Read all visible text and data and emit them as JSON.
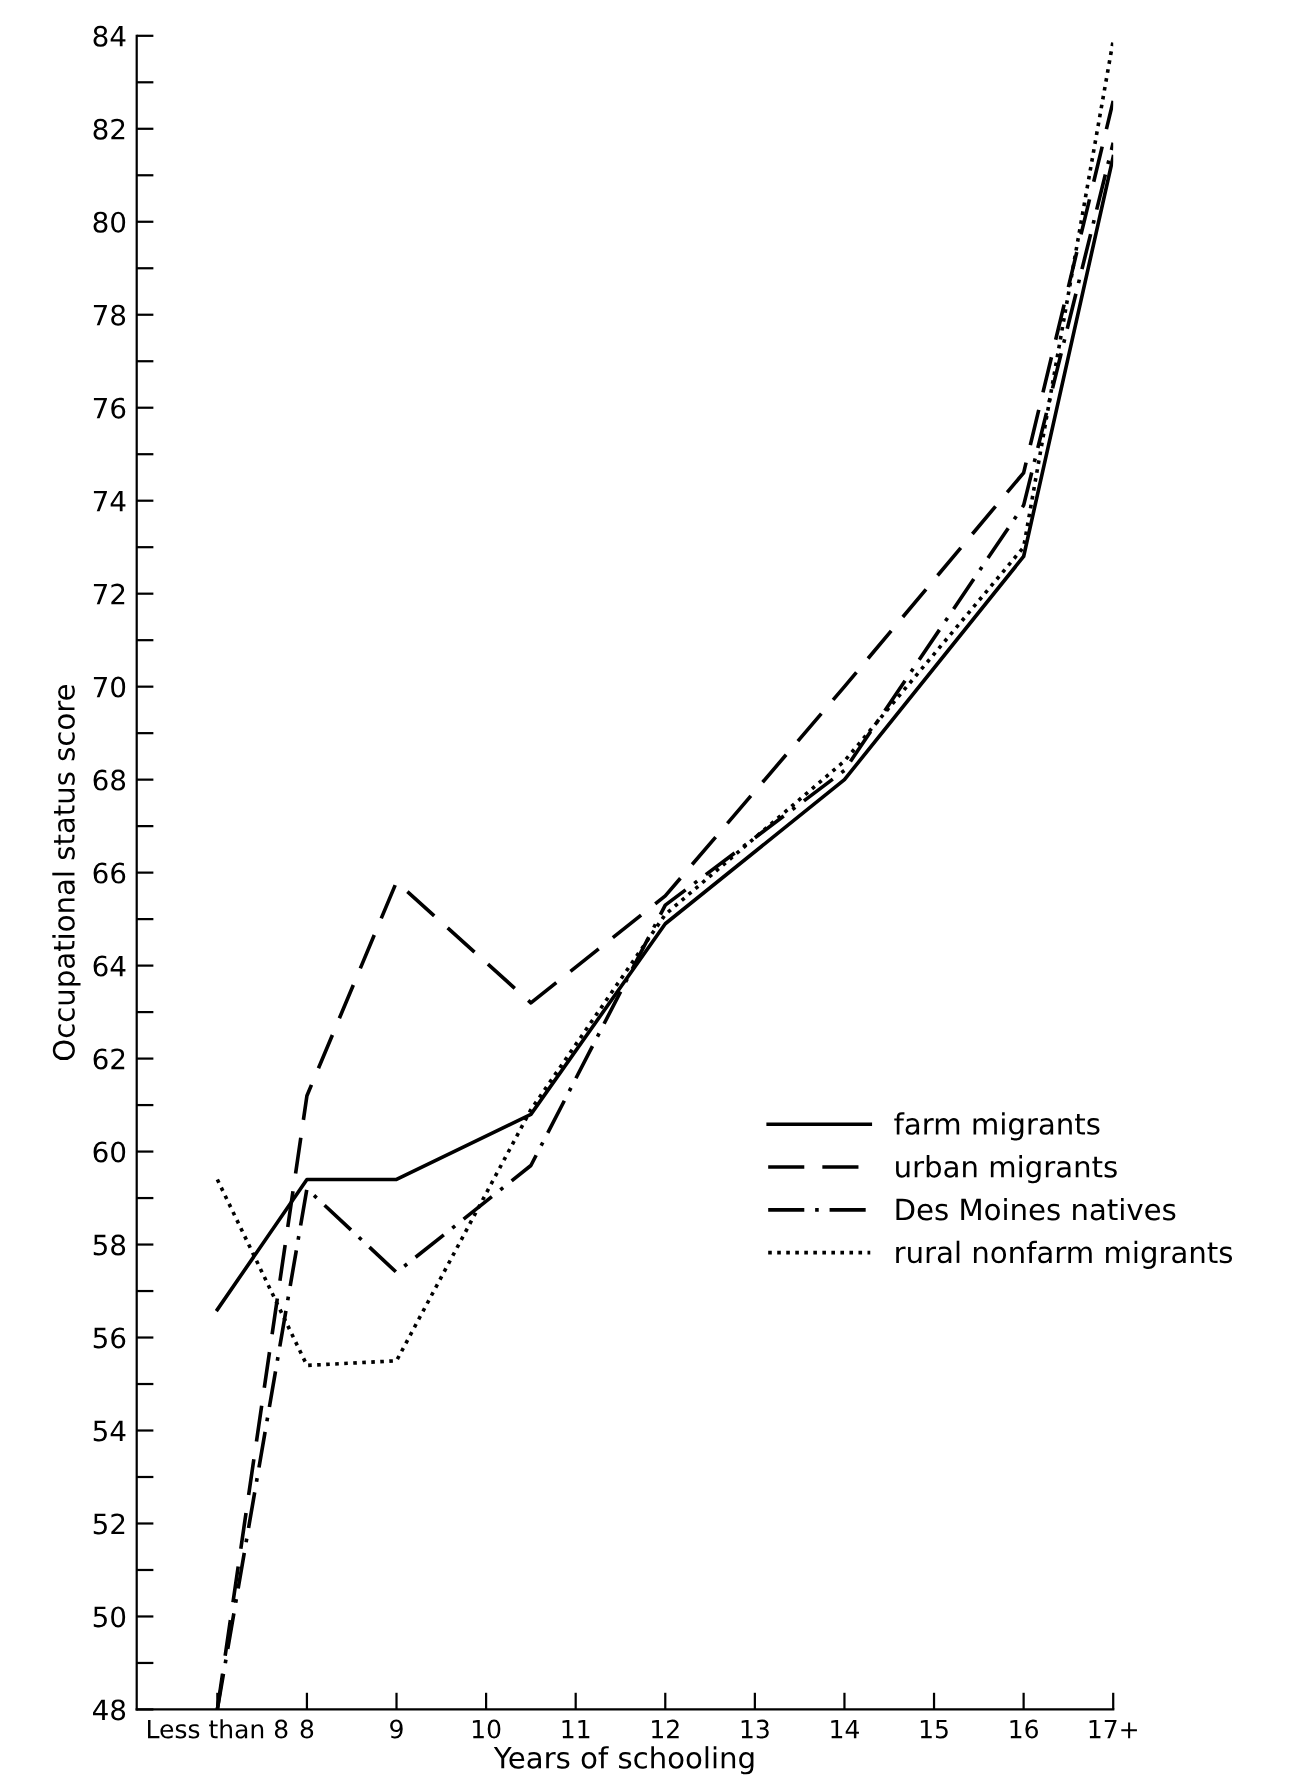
{
  "chart_data": {
    "type": "line",
    "xlabel": "Years of schooling",
    "ylabel": "Occupational status score",
    "xlim": [
      6.1,
      17
    ],
    "ylim": [
      48,
      84
    ],
    "xticks": [
      {
        "value": 7,
        "label": "Less than 8"
      },
      8,
      9,
      10,
      11,
      12,
      13,
      14,
      15,
      16,
      {
        "value": 17,
        "label": "17+"
      }
    ],
    "yticks": [
      48,
      {
        "value": 49,
        "label": null
      },
      50,
      {
        "value": 51,
        "label": null
      },
      52,
      {
        "value": 53,
        "label": null
      },
      54,
      {
        "value": 55,
        "label": null
      },
      56,
      {
        "value": 57,
        "label": null
      },
      58,
      {
        "value": 59,
        "label": null
      },
      60,
      {
        "value": 61,
        "label": null
      },
      62,
      {
        "value": 63,
        "label": null
      },
      64,
      {
        "value": 65,
        "label": null
      },
      66,
      {
        "value": 67,
        "label": null
      },
      68,
      {
        "value": 69,
        "label": null
      },
      70,
      {
        "value": 71,
        "label": null
      },
      72,
      {
        "value": 73,
        "label": null
      },
      74,
      {
        "value": 75,
        "label": null
      },
      76,
      {
        "value": 77,
        "label": null
      },
      78,
      {
        "value": 79,
        "label": null
      },
      80,
      {
        "value": 81,
        "label": null
      },
      82,
      {
        "value": 83,
        "label": null
      },
      84
    ],
    "grid": false,
    "legend": "center right",
    "marker": "none",
    "series": [
      {
        "name": "farm migrants",
        "color": "#000000",
        "line_style": "solid",
        "x": [
          7,
          8,
          9,
          10.5,
          12,
          14,
          16,
          17
        ],
        "values": [
          56.6,
          59.4,
          59.4,
          60.8,
          64.9,
          68.0,
          72.8,
          81.4
        ]
      },
      {
        "name": "urban migrants",
        "color": "#000000",
        "line_style": "dashed",
        "x": [
          7,
          8,
          9,
          10.5,
          12,
          14,
          16,
          17
        ],
        "values": [
          48,
          61.2,
          65.8,
          63.2,
          65.5,
          70.0,
          74.6,
          82.6
        ]
      },
      {
        "name": "Des Moines natives",
        "color": "#000000",
        "line_style": "dashdot",
        "x": [
          7,
          8,
          9,
          10.5,
          12,
          14,
          16,
          17
        ],
        "values": [
          48,
          59.2,
          57.4,
          59.7,
          65.3,
          68.2,
          73.9,
          81.7
        ]
      },
      {
        "name": "rural nonfarm migrants",
        "color": "#000000",
        "line_style": "dotted",
        "x": [
          7,
          8,
          9,
          10.5,
          12,
          14,
          16,
          17
        ],
        "values": [
          59.4,
          55.4,
          55.5,
          60.9,
          65.1,
          68.4,
          73.0,
          83.9
        ]
      }
    ]
  }
}
